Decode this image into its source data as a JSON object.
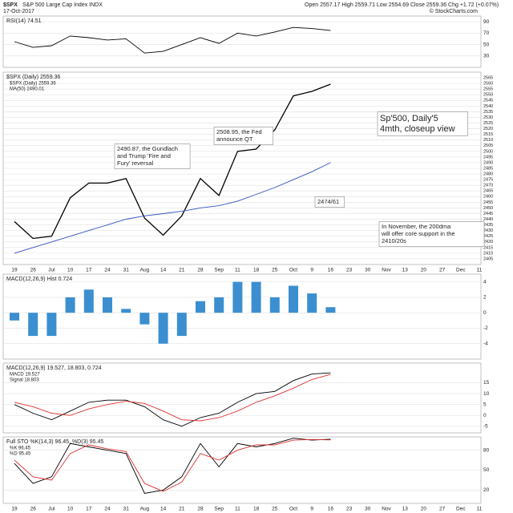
{
  "header": {
    "symbol": "$SPX",
    "name": "S&P 500 Large Cap Index INDX",
    "date": "17-Oct-2017",
    "quote": "Open 2557.17  High 2559.71  Low 2554.69  Close 2559.36  Chg +1.72 (+0.07%)",
    "credit": "© StockCharts.com"
  },
  "chart_data": [
    {
      "type": "line",
      "label": "RSI(14) 74.51",
      "ylim": [
        10,
        100
      ],
      "yticks": [
        30,
        50,
        70,
        90
      ],
      "series": [
        {
          "name": "RSI(14)",
          "color": "#000000",
          "values": [
            55,
            45,
            48,
            65,
            62,
            58,
            60,
            35,
            38,
            50,
            62,
            52,
            70,
            65,
            72,
            80,
            78,
            74.51,
            null,
            null,
            null,
            null,
            null,
            null,
            null,
            null
          ]
        }
      ]
    },
    {
      "type": "line",
      "label": "$SPX (Daily) 2559.36",
      "ylim": [
        2400,
        2570
      ],
      "yticks": [
        2405,
        2410,
        2415,
        2420,
        2425,
        2430,
        2435,
        2440,
        2445,
        2450,
        2455,
        2460,
        2465,
        2470,
        2475,
        2480,
        2485,
        2490,
        2495,
        2500,
        2505,
        2510,
        2515,
        2520,
        2525,
        2530,
        2535,
        2540,
        2545,
        2550,
        2555,
        2560,
        2565
      ],
      "categories": [
        "19",
        "26",
        "Jul",
        "10",
        "17",
        "24",
        "31",
        "Aug",
        "14",
        "21",
        "28",
        "Sep",
        "11",
        "18",
        "25",
        "Oct",
        "9",
        "16",
        "23",
        "30",
        "Nov",
        "13",
        "20",
        "27",
        "Dec",
        "11"
      ],
      "series": [
        {
          "name": "$SPX (Daily) 2559.36",
          "color": "#000000",
          "values": [
            2438,
            2423,
            2425,
            2459,
            2472,
            2472,
            2476,
            2441,
            2426,
            2443,
            2476,
            2461,
            2500,
            2502,
            2519,
            2549,
            2553,
            2559.36,
            null,
            null,
            null,
            null,
            null,
            null,
            null,
            null
          ]
        },
        {
          "name": "MA(50) 2490.01",
          "color": "#3050c0",
          "values": [
            2410,
            2415,
            2420,
            2425,
            2430,
            2435,
            2440,
            2443,
            2445,
            2447,
            2450,
            2452,
            2456,
            2462,
            2468,
            2475,
            2482,
            2490.01,
            null,
            null,
            null,
            null,
            null,
            null,
            null,
            null
          ]
        }
      ]
    },
    {
      "type": "bar",
      "label": "MACD(12,26,9) Hist 0.724",
      "color": "#3b8fd0",
      "ylim": [
        -6,
        5
      ],
      "yticks": [
        -4,
        -2,
        0,
        2,
        4
      ],
      "values": [
        -1,
        -3,
        -3,
        2,
        3,
        2,
        0.5,
        -1.5,
        -4,
        -3,
        1.5,
        2,
        4,
        4,
        2,
        3.5,
        2.5,
        0.724,
        null,
        null,
        null,
        null,
        null,
        null,
        null,
        null
      ]
    },
    {
      "type": "line",
      "label": "MACD(12,26,9) 19.527, 18.803, 0.724",
      "ylim": [
        -8,
        24
      ],
      "yticks": [
        -5,
        0,
        5,
        10,
        15
      ],
      "series": [
        {
          "name": "MACD 19.527",
          "color": "#000000",
          "values": [
            5,
            1,
            -2,
            2,
            6,
            7,
            7,
            4,
            -2,
            -5,
            -1,
            1,
            6,
            10,
            11,
            16,
            19,
            19.527,
            null,
            null,
            null,
            null,
            null,
            null,
            null,
            null
          ]
        },
        {
          "name": "Signal 18.803",
          "color": "#e03030",
          "values": [
            6,
            4,
            1,
            0,
            3,
            5,
            6.5,
            5.5,
            2,
            -2,
            -2.5,
            -1,
            2,
            6,
            9,
            12.5,
            16.5,
            18.803,
            null,
            null,
            null,
            null,
            null,
            null,
            null,
            null
          ]
        }
      ]
    },
    {
      "type": "line",
      "label": "Full STO %K(14,3) 96.45, %D(3) 95.45",
      "ylim": [
        0,
        100
      ],
      "yticks": [
        20,
        50,
        80
      ],
      "categories": [
        "19",
        "26",
        "Jul",
        "10",
        "17",
        "24",
        "31",
        "Aug",
        "14",
        "21",
        "28",
        "Sep",
        "11",
        "18",
        "25",
        "Oct",
        "9",
        "16",
        "23",
        "30",
        "Nov",
        "13",
        "20",
        "27",
        "Dec",
        "11"
      ],
      "series": [
        {
          "name": "%K 96.45",
          "color": "#000000",
          "values": [
            60,
            30,
            40,
            90,
            85,
            80,
            75,
            15,
            20,
            40,
            90,
            55,
            90,
            85,
            90,
            98,
            95,
            96.45,
            null,
            null,
            null,
            null,
            null,
            null,
            null,
            null
          ]
        },
        {
          "name": "%D 95.45",
          "color": "#e03030",
          "values": [
            65,
            40,
            35,
            75,
            88,
            82,
            78,
            30,
            18,
            32,
            75,
            65,
            80,
            88,
            88,
            95,
            96,
            95.45,
            null,
            null,
            null,
            null,
            null,
            null,
            null,
            null
          ]
        }
      ]
    }
  ],
  "annotations": [
    {
      "lines": [
        "2490.87, the Gundlach",
        "and Trump 'Fire and",
        "Fury' reversal"
      ]
    },
    {
      "lines": [
        "2508.95, the Fed",
        "announce QT"
      ]
    },
    {
      "lines": [
        "2474/61"
      ]
    },
    {
      "lines": [
        "Sp'500, Daily'5",
        "4mth, closeup view"
      ]
    },
    {
      "lines": [
        "In November, the 200dma",
        "will offer core support in the",
        "2410/20s"
      ]
    }
  ]
}
